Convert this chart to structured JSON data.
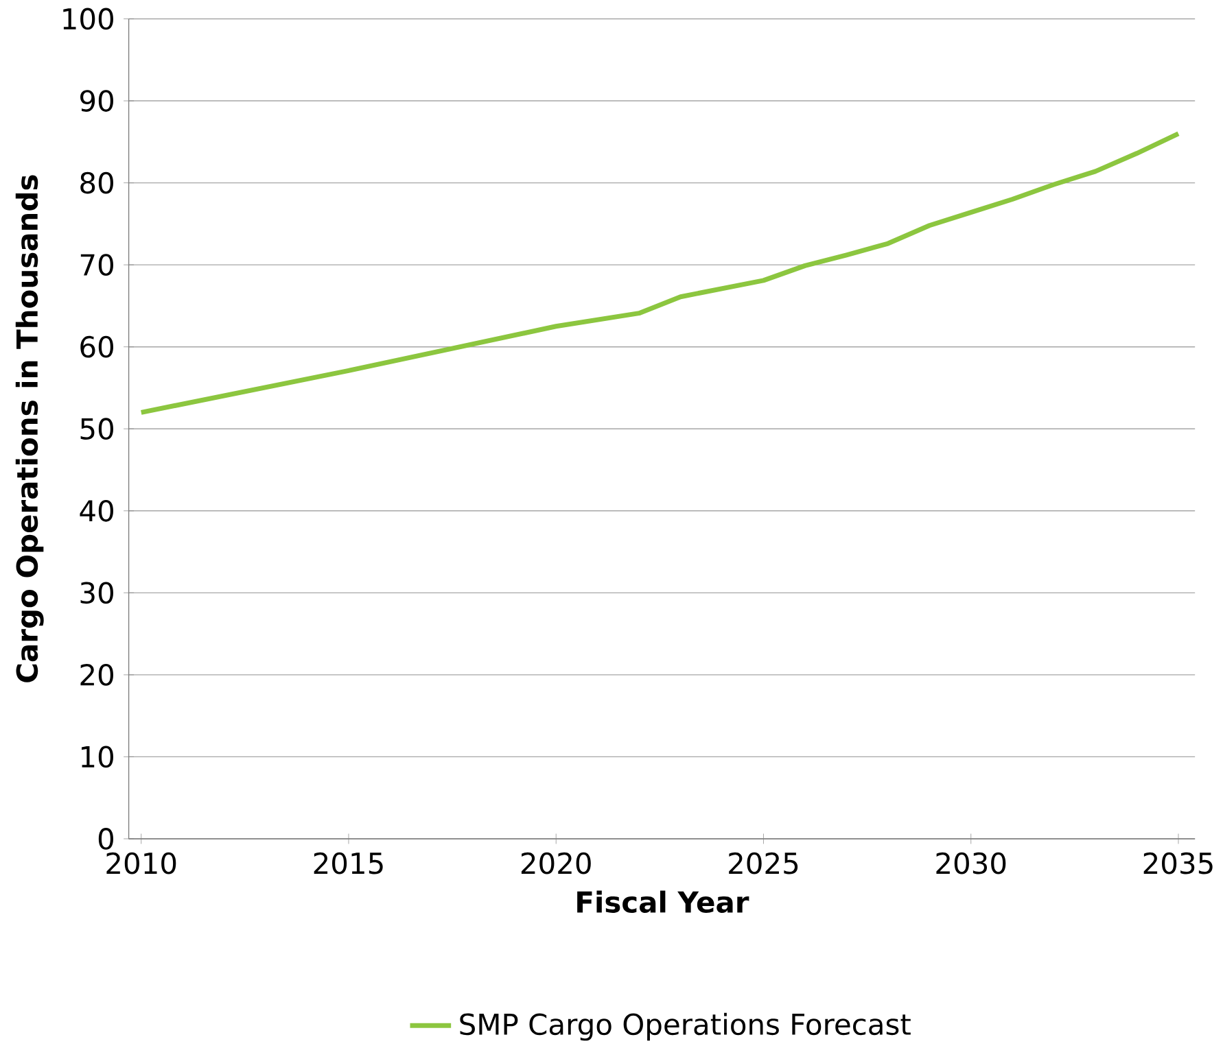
{
  "chart_data": {
    "type": "line",
    "xlabel": "Fiscal Year",
    "ylabel": "Cargo Operations in Thousands",
    "x": [
      2010,
      2015,
      2020,
      2022,
      2023,
      2025,
      2026,
      2027,
      2028,
      2029,
      2030,
      2031,
      2032,
      2033,
      2034,
      2035
    ],
    "series": [
      {
        "name": "SMP Cargo Operations Forecast",
        "color": "#8cc63f",
        "values": [
          52,
          57.1,
          62.5,
          64.1,
          66.1,
          68.1,
          69.9,
          71.2,
          72.6,
          74.8,
          76.4,
          78.0,
          79.8,
          81.4,
          83.6,
          86.0
        ]
      }
    ],
    "xlim": [
      2009.7,
      2035.4
    ],
    "xticks": [
      2010,
      2015,
      2020,
      2025,
      2030,
      2035
    ],
    "ylim": [
      0,
      100
    ],
    "yticks": [
      0,
      10,
      20,
      30,
      40,
      50,
      60,
      70,
      80,
      90,
      100
    ],
    "grid": "y",
    "legend": "bottom",
    "marker": "none",
    "line_style": "solid"
  }
}
